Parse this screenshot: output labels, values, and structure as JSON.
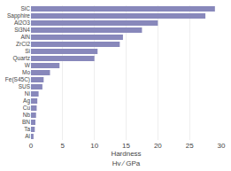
{
  "chart_data": {
    "type": "bar",
    "orientation": "horizontal",
    "categories": [
      "Al",
      "Ta",
      "BN",
      "Nb",
      "Cu",
      "Ag",
      "Ni",
      "SUS",
      "Fe(S45C)",
      "Mo",
      "W",
      "Quartz",
      "Si",
      "ZrCl2",
      "AlN",
      "Si3N4",
      "Al2O3",
      "Sapphire",
      "SiC"
    ],
    "values": [
      0.4,
      0.6,
      0.7,
      0.8,
      0.9,
      1.0,
      1.2,
      1.8,
      2.0,
      3.0,
      4.5,
      10.0,
      10.5,
      14.0,
      14.5,
      17.5,
      20.0,
      27.5,
      29.0
    ],
    "color": "#8888bb",
    "xlabel": [
      "Hardness",
      "Hv ∕ GPa"
    ],
    "xlim": [
      0,
      30
    ],
    "xticks": [
      0,
      5,
      10,
      15,
      20,
      25,
      30
    ],
    "grid": true
  }
}
